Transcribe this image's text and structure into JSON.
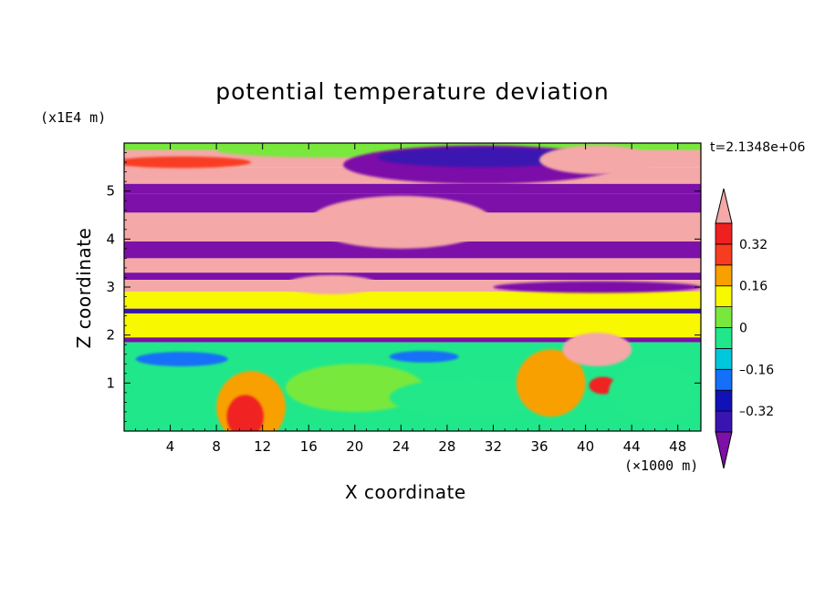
{
  "chart_data": {
    "type": "heatmap",
    "title": "potential temperature deviation",
    "xlabel": "X coordinate",
    "ylabel": "Z coordinate",
    "x_scale_label": "(×1000 m)",
    "y_scale_label": "(x1E4 m)",
    "time_label": "t=2.1348e+06",
    "xlim": [
      0,
      50
    ],
    "ylim": [
      0,
      6
    ],
    "x_ticks": [
      4,
      8,
      12,
      16,
      20,
      24,
      28,
      32,
      36,
      40,
      44,
      48
    ],
    "x_tick_labels": [
      "4",
      "8",
      "12",
      "16",
      "20",
      "24",
      "28",
      "32",
      "36",
      "40",
      "44",
      "48"
    ],
    "y_ticks": [
      1,
      2,
      3,
      4,
      5
    ],
    "y_tick_labels": [
      "1",
      "2",
      "3",
      "4",
      "5"
    ],
    "colorbar": {
      "levels": [
        -0.4,
        -0.32,
        -0.24,
        -0.16,
        -0.08,
        0,
        0.08,
        0.16,
        0.24,
        0.32,
        0.4
      ],
      "level_labels": [
        {
          "value": 0.32,
          "label": "0.32"
        },
        {
          "value": 0.16,
          "label": "0.16"
        },
        {
          "value": 0,
          "label": "0"
        },
        {
          "value": -0.16,
          "label": "–0.16"
        },
        {
          "value": -0.32,
          "label": "–0.32"
        }
      ],
      "colors": [
        "#7c10a8",
        "#3a14b0",
        "#1012b8",
        "#1470f8",
        "#00c8dc",
        "#20e88a",
        "#78e83c",
        "#f8f800",
        "#f8a000",
        "#f83c20",
        "#f02020",
        "#f4a8a8"
      ],
      "extend": "both"
    },
    "bands": [
      {
        "z0": 5.85,
        "z1": 6.0,
        "value": 0.05
      },
      {
        "z0": 5.5,
        "z1": 5.85,
        "value": 0.45
      },
      {
        "z0": 5.15,
        "z1": 5.5,
        "value": 0.45
      },
      {
        "z0": 4.95,
        "z1": 5.15,
        "value": -0.45
      },
      {
        "z0": 4.55,
        "z1": 4.95,
        "value": -0.45
      },
      {
        "z0": 3.95,
        "z1": 4.55,
        "value": 0.45
      },
      {
        "z0": 3.6,
        "z1": 3.95,
        "value": -0.45
      },
      {
        "z0": 3.3,
        "z1": 3.6,
        "value": 0.45
      },
      {
        "z0": 3.15,
        "z1": 3.3,
        "value": -0.45
      },
      {
        "z0": 2.9,
        "z1": 3.15,
        "value": 0.45
      },
      {
        "z0": 2.55,
        "z1": 2.9,
        "value": 0.1
      },
      {
        "z0": 2.45,
        "z1": 2.55,
        "value": -0.35
      },
      {
        "z0": 1.95,
        "z1": 2.45,
        "value": 0.1
      },
      {
        "z0": 1.85,
        "z1": 1.95,
        "value": -0.45
      },
      {
        "z0": 0.0,
        "z1": 1.85,
        "value": -0.05
      }
    ],
    "features": [
      {
        "x": 18,
        "z": 5.85,
        "rx": 10,
        "rz": 0.15,
        "value": 0.05
      },
      {
        "x": 31,
        "z": 5.55,
        "rx": 12,
        "rz": 0.4,
        "value": -0.45
      },
      {
        "x": 31,
        "z": 5.7,
        "rx": 9,
        "rz": 0.2,
        "value": -0.38
      },
      {
        "x": 41,
        "z": 5.65,
        "rx": 5,
        "rz": 0.3,
        "value": 0.45
      },
      {
        "x": 5,
        "z": 5.6,
        "rx": 6,
        "rz": 0.12,
        "value": 0.3
      },
      {
        "x": 24,
        "z": 4.35,
        "rx": 8,
        "rz": 0.55,
        "value": 0.45
      },
      {
        "x": 18,
        "z": 3.05,
        "rx": 4,
        "rz": 0.2,
        "value": 0.45
      },
      {
        "x": 41,
        "z": 3.0,
        "rx": 9,
        "rz": 0.12,
        "value": -0.45
      },
      {
        "x": 11,
        "z": 0.5,
        "rx": 3,
        "rz": 0.75,
        "value": 0.2
      },
      {
        "x": 10.5,
        "z": 0.3,
        "rx": 1.6,
        "rz": 0.45,
        "value": 0.35
      },
      {
        "x": 20,
        "z": 0.9,
        "rx": 6,
        "rz": 0.5,
        "value": 0.05
      },
      {
        "x": 30,
        "z": 0.7,
        "rx": 7,
        "rz": 0.4,
        "value": -0.05
      },
      {
        "x": 37,
        "z": 1.0,
        "rx": 3,
        "rz": 0.7,
        "value": 0.2
      },
      {
        "x": 41,
        "z": 1.7,
        "rx": 3,
        "rz": 0.35,
        "value": 0.45
      },
      {
        "x": 41.5,
        "z": 0.95,
        "rx": 1.2,
        "rz": 0.18,
        "value": 0.35
      },
      {
        "x": 46,
        "z": 0.8,
        "rx": 4,
        "rz": 0.6,
        "value": -0.05
      },
      {
        "x": 5,
        "z": 1.5,
        "rx": 4,
        "rz": 0.15,
        "value": -0.2
      },
      {
        "x": 26,
        "z": 1.55,
        "rx": 3,
        "rz": 0.12,
        "value": -0.2
      }
    ]
  }
}
